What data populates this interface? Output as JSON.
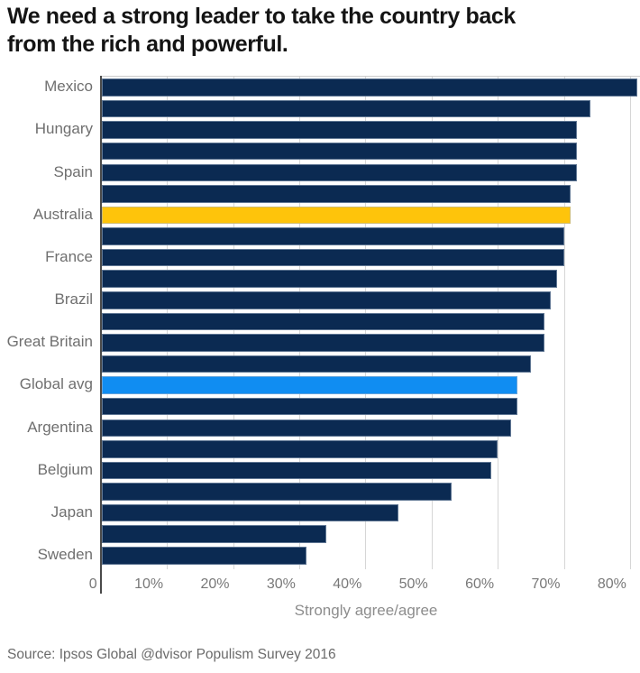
{
  "header": {
    "title_line1": "We need a strong leader to take the country back",
    "title_line2": "from the rich and powerful."
  },
  "footer": {
    "source": "Source: Ipsos Global @dvisor Populism Survey 2016"
  },
  "chart_data": {
    "type": "bar",
    "orientation": "horizontal",
    "title": "We need a strong leader to take the country back from the rich and powerful.",
    "xlabel": "Strongly agree/agree",
    "xlim": [
      0,
      82
    ],
    "x_tick_labels": [
      "0",
      "10%",
      "20%",
      "30%",
      "40%",
      "50%",
      "60%",
      "70%",
      "80%"
    ],
    "grid": "vertical",
    "legend": "none",
    "categories": [
      "Mexico",
      "",
      "Hungary",
      "",
      "Spain",
      "",
      "Australia",
      "",
      "France",
      "",
      "Brazil",
      "",
      "Great Britain",
      "",
      "Global avg",
      "",
      "Argentina",
      "",
      "Belgium",
      "",
      "Japan",
      "",
      "Sweden"
    ],
    "values": [
      81,
      74,
      72,
      72,
      72,
      71,
      71,
      70,
      70,
      69,
      68,
      67,
      67,
      65,
      63,
      63,
      62,
      60,
      59,
      53,
      45,
      34,
      31
    ],
    "bar_color": "#0b2a52",
    "highlights": [
      {
        "index": 6,
        "label": "Australia",
        "color": "#fec40b"
      },
      {
        "index": 14,
        "label": "Global avg",
        "color": "#108df2"
      }
    ],
    "colors": {
      "gridline": "#d6d6d6",
      "axis_line": "#4a4a4a",
      "category_label": "#6f6f6f",
      "tick_label": "#787878",
      "xlabel": "#8d8d8d",
      "title": "#141414",
      "source": "#6b6b6b"
    }
  }
}
